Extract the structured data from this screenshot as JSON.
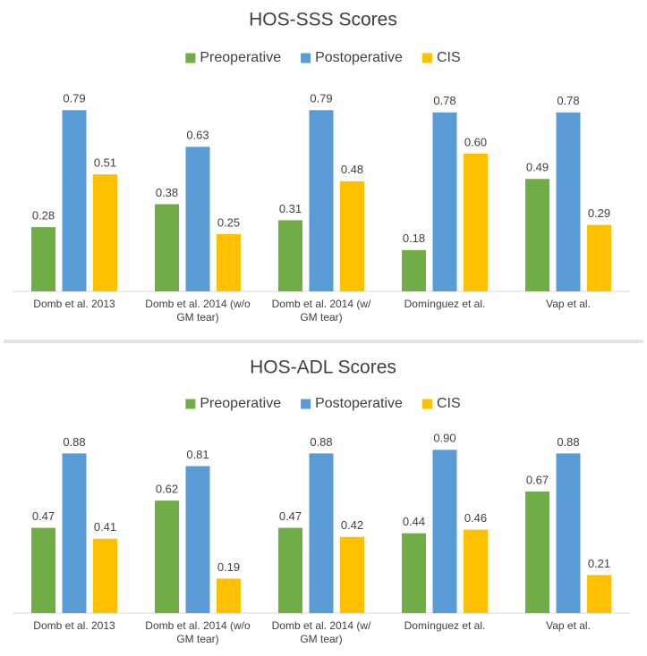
{
  "chart_data": [
    {
      "type": "bar",
      "title": "HOS-SSS Scores",
      "categories": [
        "Domb et al. 2013",
        "Domb et al. 2014 (w/o GM tear)",
        "Domb et al. 2014 (w/ GM tear)",
        "Domínguez et al.",
        "Vap et al."
      ],
      "series": [
        {
          "name": "Preoperative",
          "color": "#70ad47",
          "values": [
            0.28,
            0.38,
            0.31,
            0.18,
            0.49
          ],
          "value_labels": [
            "0.28",
            "0.38",
            "0.31",
            "0.18",
            "0.49"
          ]
        },
        {
          "name": "Postoperative",
          "color": "#5b9bd5",
          "values": [
            0.79,
            0.63,
            0.79,
            0.78,
            0.78
          ],
          "value_labels": [
            "0.79",
            "0.63",
            "0.79",
            "0.78",
            "0.78"
          ]
        },
        {
          "name": "CIS",
          "color": "#ffc000",
          "values": [
            0.51,
            0.25,
            0.48,
            0.6,
            0.29
          ],
          "value_labels": [
            "0.51",
            "0.25",
            "0.48",
            "0.60",
            "0.29"
          ]
        }
      ],
      "ylim": [
        0,
        0.9
      ],
      "legend": "top"
    },
    {
      "type": "bar",
      "title": "HOS-ADL Scores",
      "categories": [
        "Domb et al. 2013",
        "Domb et al. 2014 (w/o GM tear)",
        "Domb et al. 2014 (w/ GM tear)",
        "Domínguez et al.",
        "Vap et al."
      ],
      "series": [
        {
          "name": "Preoperative",
          "color": "#70ad47",
          "values": [
            0.47,
            0.62,
            0.47,
            0.44,
            0.67
          ],
          "value_labels": [
            "0.47",
            "0.62",
            "0.47",
            "0.44",
            "0.67"
          ]
        },
        {
          "name": "Postoperative",
          "color": "#5b9bd5",
          "values": [
            0.88,
            0.81,
            0.88,
            0.9,
            0.88
          ],
          "value_labels": [
            "0.88",
            "0.81",
            "0.88",
            "0.90",
            "0.88"
          ]
        },
        {
          "name": "CIS",
          "color": "#ffc000",
          "values": [
            0.41,
            0.19,
            0.42,
            0.46,
            0.21
          ],
          "value_labels": [
            "0.41",
            "0.19",
            "0.42",
            "0.46",
            "0.21"
          ]
        }
      ],
      "ylim": [
        0,
        1
      ],
      "legend": "top"
    }
  ]
}
